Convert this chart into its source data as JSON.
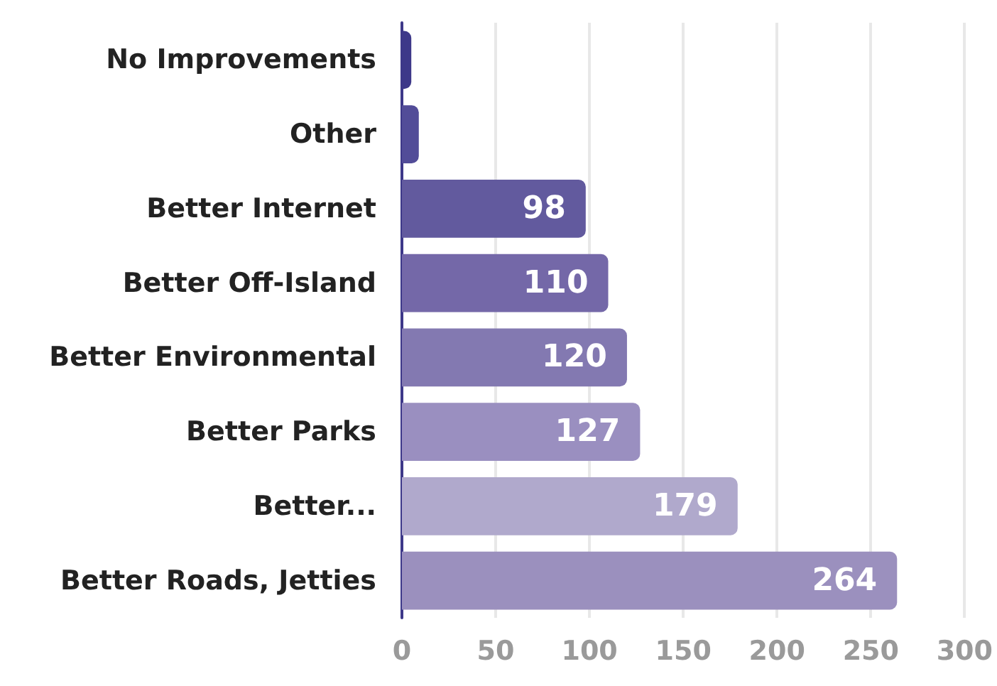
{
  "chart_data": {
    "type": "bar",
    "orientation": "horizontal",
    "categories": [
      "No Improvements",
      "Other",
      "Better Internet",
      "Better Off-Island",
      "Better Environmental",
      "Better Parks",
      "Better...",
      "Better Roads, Jetties"
    ],
    "values": [
      5,
      9,
      98,
      110,
      120,
      127,
      179,
      264
    ],
    "colors": [
      "#3d3889",
      "#524c98",
      "#625a9e",
      "#7468a8",
      "#8379b1",
      "#9a8fc0",
      "#b0a9cc",
      "#9b90be"
    ],
    "value_labels": [
      null,
      null,
      "98",
      "110",
      "120",
      "127",
      "179",
      "264"
    ],
    "xlim": [
      0,
      300
    ],
    "xticks": [
      0,
      50,
      100,
      150,
      200,
      250,
      300
    ],
    "grid": "x"
  }
}
